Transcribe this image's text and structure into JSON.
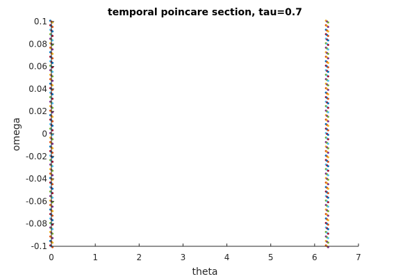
{
  "chart_data": {
    "type": "scatter",
    "title": "temporal poincare section, tau=0.7",
    "xlabel": "theta",
    "ylabel": "omega",
    "xlim": [
      0,
      7
    ],
    "ylim": [
      -0.1,
      0.1
    ],
    "xticks": [
      0,
      1,
      2,
      3,
      4,
      5,
      6,
      7
    ],
    "xtick_labels": [
      "0",
      "1",
      "2",
      "3",
      "4",
      "5",
      "6",
      "7"
    ],
    "yticks": [
      -0.1,
      -0.08,
      -0.06,
      -0.04,
      -0.02,
      0,
      0.02,
      0.04,
      0.06,
      0.08,
      0.1
    ],
    "ytick_labels": [
      "-0.1",
      "-0.08",
      "-0.06",
      "-0.04",
      "-0.02",
      "0",
      "0.02",
      "0.04",
      "0.06",
      "0.08",
      "0.1"
    ],
    "grid": false,
    "box": "left-bottom",
    "series_colors": [
      "#0072BD",
      "#D95319",
      "#EDB120",
      "#7E2F8E",
      "#77AC30",
      "#4DBEEE",
      "#A2142F"
    ],
    "point_groups": [
      {
        "theta": 0,
        "omega_min": -0.1,
        "omega_max": 0.1,
        "omega_step": 0.004
      },
      {
        "theta": 6.2832,
        "omega_min": -0.1,
        "omega_max": 0.1,
        "omega_step": 0.004
      }
    ]
  }
}
